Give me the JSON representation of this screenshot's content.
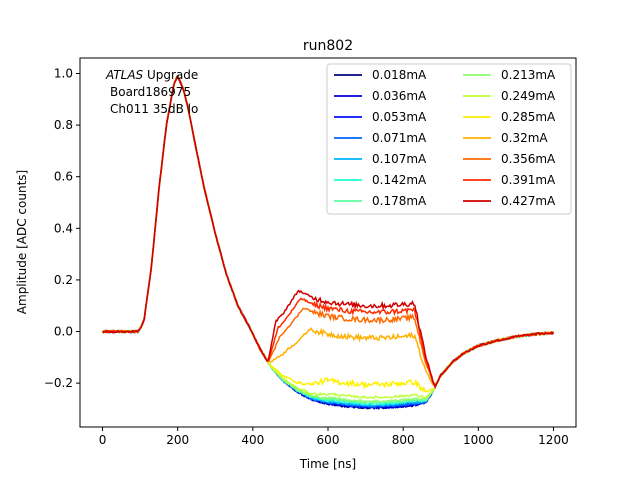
{
  "chart_data": {
    "type": "line",
    "title": "run802",
    "xlabel": "Time [ns]",
    "ylabel": "Amplitude [ADC counts]",
    "xlim": [
      -60,
      1260
    ],
    "ylim": [
      -0.37,
      1.06
    ],
    "xticks": [
      "0",
      "200",
      "400",
      "600",
      "800",
      "1000",
      "1200"
    ],
    "yticks": [
      "−0.2",
      "0.0",
      "0.2",
      "0.4",
      "0.6",
      "0.8",
      "1.0"
    ],
    "grid": false,
    "legend_position": "top-right",
    "legend_columns": 2,
    "annotation": {
      "italic": "ATLAS",
      "line1_rest": " Upgrade",
      "line2": "Board186975",
      "line3": "Ch011 35dB lo"
    },
    "x": [
      0,
      50,
      95,
      110,
      130,
      150,
      170,
      190,
      200,
      215,
      230,
      250,
      270,
      300,
      330,
      360,
      390,
      420,
      450,
      480,
      520,
      560,
      600,
      650,
      700,
      750,
      800,
      830,
      860,
      880,
      900,
      930,
      960,
      1000,
      1050,
      1100,
      1150,
      1200
    ],
    "base": [
      0,
      0,
      0,
      0.04,
      0.25,
      0.55,
      0.8,
      0.96,
      0.99,
      0.94,
      0.85,
      0.7,
      0.56,
      0.38,
      0.22,
      0.1,
      0.02,
      -0.07,
      -0.14,
      -0.19,
      -0.235,
      -0.265,
      -0.28,
      -0.29,
      -0.295,
      -0.295,
      -0.29,
      -0.285,
      -0.275,
      -0.23,
      -0.17,
      -0.12,
      -0.085,
      -0.055,
      -0.035,
      -0.02,
      -0.01,
      -0.005
    ],
    "series": [
      {
        "name": "0.018mA",
        "color": "#00007f",
        "plateau": -0.29
      },
      {
        "name": "0.036mA",
        "color": "#0000d6",
        "plateau": -0.29
      },
      {
        "name": "0.053mA",
        "color": "#0010ff",
        "plateau": -0.285
      },
      {
        "name": "0.071mA",
        "color": "#0064ff",
        "plateau": -0.285
      },
      {
        "name": "0.107mA",
        "color": "#00b4ff",
        "plateau": -0.28
      },
      {
        "name": "0.142mA",
        "color": "#20ffd7",
        "plateau": -0.275
      },
      {
        "name": "0.178mA",
        "color": "#5effa0",
        "plateau": -0.27
      },
      {
        "name": "0.213mA",
        "color": "#8bff6b",
        "plateau": -0.265
      },
      {
        "name": "0.249mA",
        "color": "#beff3a",
        "plateau": -0.25
      },
      {
        "name": "0.285mA",
        "color": "#fff000",
        "plateau": -0.2
      },
      {
        "name": "0.32mA",
        "color": "#ffb000",
        "plateau": -0.02
      },
      {
        "name": "0.356mA",
        "color": "#ff6a00",
        "plateau": 0.05
      },
      {
        "name": "0.391mA",
        "color": "#ff2a00",
        "plateau": 0.08
      },
      {
        "name": "0.427mA",
        "color": "#d00000",
        "plateau": 0.105
      }
    ]
  }
}
